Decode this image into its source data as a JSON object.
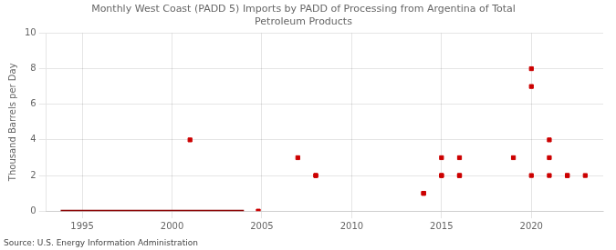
{
  "chart_data": {
    "type": "scatter",
    "title": "Monthly West Coast (PADD 5) Imports by PADD of Processing from Argentina of Total\nPetroleum Products",
    "ylabel": "Thousand Barrels per Day",
    "annotation": "Source: U.S. Energy Information Administration",
    "xlim": [
      1993,
      2024
    ],
    "ylim": [
      0,
      10
    ],
    "xticks": [
      1995,
      2000,
      2005,
      2010,
      2015,
      2020
    ],
    "yticks": [
      0,
      2,
      4,
      6,
      8,
      10
    ],
    "grid": true,
    "series": [
      {
        "type": "line",
        "color": "#8b0000",
        "x": [
          1993.8,
          2004.0
        ],
        "values": [
          0,
          0
        ]
      },
      {
        "type": "scatter",
        "color": "#cc0000",
        "marker": "square",
        "x": [
          2004.8
        ],
        "values": [
          0
        ]
      },
      {
        "type": "scatter",
        "color": "#cc0000",
        "marker": "square",
        "x": [
          2001,
          2007,
          2008,
          2008,
          2014,
          2014,
          2015,
          2015,
          2015,
          2016,
          2016,
          2016,
          2019,
          2020,
          2020,
          2020,
          2021,
          2021,
          2021,
          2022,
          2022,
          2023
        ],
        "values": [
          4,
          3,
          2,
          2,
          1,
          1,
          2,
          3,
          2,
          2,
          2,
          3,
          3,
          8,
          7,
          2,
          4,
          3,
          2,
          2,
          2,
          2
        ]
      }
    ]
  }
}
